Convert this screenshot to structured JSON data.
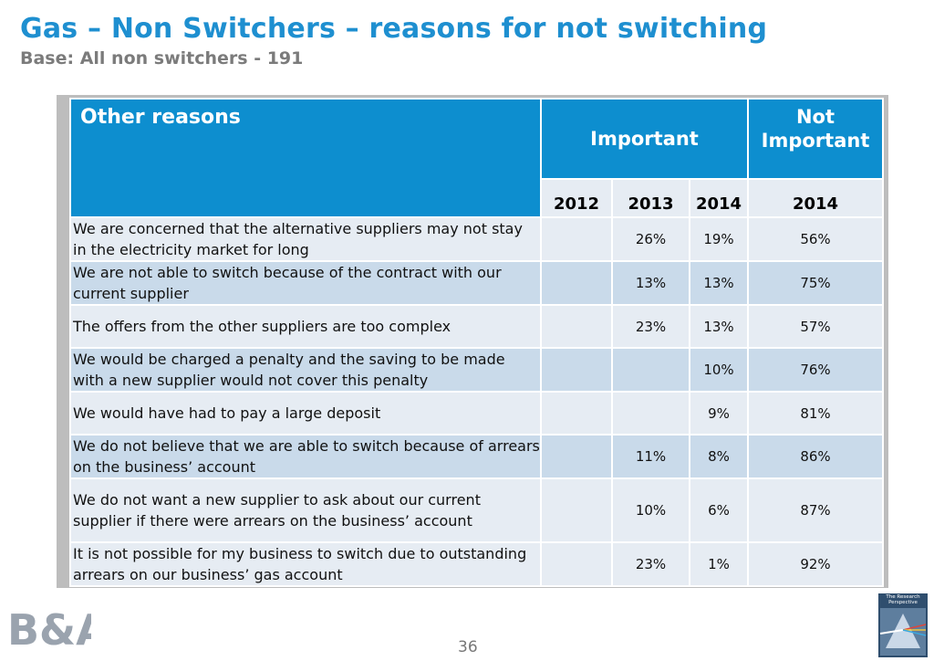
{
  "title": "Gas – Non Switchers – reasons for not switching",
  "subtitle": "Base: All non switchers - 191",
  "table": {
    "header_label": "Other reasons",
    "important_label": "Important",
    "not_important_label": "Not Important",
    "years": [
      "2012",
      "2013",
      "2014",
      "2014"
    ],
    "rows": [
      {
        "reason": "We are concerned that the alternative suppliers may not stay in the electricity market for long",
        "v2012": "",
        "v2013": "26%",
        "v2014": "19%",
        "notimp": "56%"
      },
      {
        "reason": "We are not able to switch because of the contract with our current supplier",
        "v2012": "",
        "v2013": "13%",
        "v2014": "13%",
        "notimp": "75%"
      },
      {
        "reason": "The offers from the other suppliers are too complex",
        "v2012": "",
        "v2013": "23%",
        "v2014": "13%",
        "notimp": "57%"
      },
      {
        "reason": "We would be charged a penalty and the saving to be made with a new supplier would not cover this penalty",
        "v2012": "",
        "v2013": "",
        "v2014": "10%",
        "notimp": "76%"
      },
      {
        "reason": "We would have had to pay a large deposit",
        "v2012": "",
        "v2013": "",
        "v2014": "9%",
        "notimp": "81%"
      },
      {
        "reason": "We do not believe that we are able to switch because of arrears on the business’ account",
        "v2012": "",
        "v2013": "11%",
        "v2014": "8%",
        "notimp": "86%"
      },
      {
        "reason": "We do not want a new supplier to ask about our current supplier if there were arrears on the business’  account",
        "v2012": "",
        "v2013": "10%",
        "v2014": "6%",
        "notimp": "87%"
      },
      {
        "reason": " It is not possible for my business to switch due to outstanding arrears on our business’ gas account",
        "v2012": "",
        "v2013": "23%",
        "v2014": "1%",
        "notimp": "92%"
      }
    ]
  },
  "footer": {
    "page_number": "36",
    "left_logo_text": "B&A",
    "right_logo_text": "The Research Perspective"
  },
  "colors": {
    "title": "#1E8FD0",
    "header_blue": "#0D8ECF",
    "row_light": "#E6ECF3",
    "row_dark": "#C9DAEA"
  }
}
